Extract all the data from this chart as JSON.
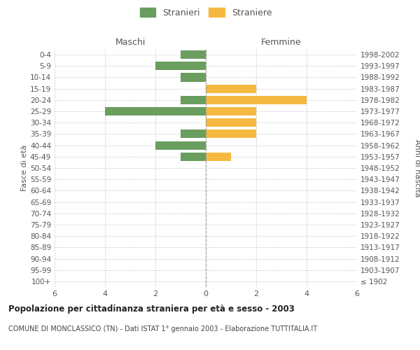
{
  "age_groups": [
    "100+",
    "95-99",
    "90-94",
    "85-89",
    "80-84",
    "75-79",
    "70-74",
    "65-69",
    "60-64",
    "55-59",
    "50-54",
    "45-49",
    "40-44",
    "35-39",
    "30-34",
    "25-29",
    "20-24",
    "15-19",
    "10-14",
    "5-9",
    "0-4"
  ],
  "birth_years": [
    "≤ 1902",
    "1903-1907",
    "1908-1912",
    "1913-1917",
    "1918-1922",
    "1923-1927",
    "1928-1932",
    "1933-1937",
    "1938-1942",
    "1943-1947",
    "1948-1952",
    "1953-1957",
    "1958-1962",
    "1963-1967",
    "1968-1972",
    "1973-1977",
    "1978-1982",
    "1983-1987",
    "1988-1992",
    "1993-1997",
    "1998-2002"
  ],
  "maschi": [
    0,
    0,
    0,
    0,
    0,
    0,
    0,
    0,
    0,
    0,
    0,
    1,
    2,
    1,
    0,
    4,
    1,
    0,
    1,
    2,
    1
  ],
  "femmine": [
    0,
    0,
    0,
    0,
    0,
    0,
    0,
    0,
    0,
    0,
    0,
    1,
    0,
    2,
    2,
    2,
    4,
    2,
    0,
    0,
    0
  ],
  "male_color": "#6a9e5e",
  "female_color": "#f5b942",
  "title": "Popolazione per cittadinanza straniera per età e sesso - 2003",
  "subtitle": "COMUNE DI MONCLASSICO (TN) - Dati ISTAT 1° gennaio 2003 - Elaborazione TUTTITALIA.IT",
  "ylabel_left": "Fasce di età",
  "ylabel_right": "Anni di nascita",
  "xlabel_left": "Maschi",
  "xlabel_right": "Femmine",
  "legend_stranieri": "Stranieri",
  "legend_straniere": "Straniere",
  "xlim": 6,
  "background_color": "#ffffff",
  "grid_color": "#cccccc"
}
